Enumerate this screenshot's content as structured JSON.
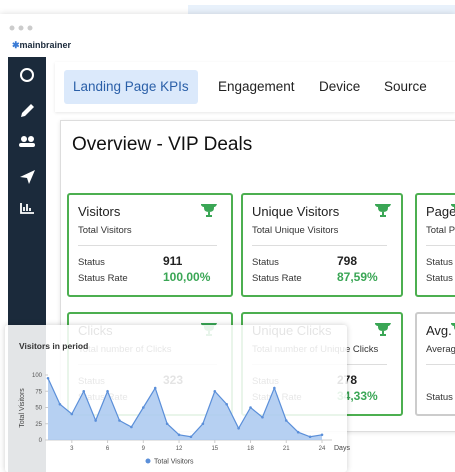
{
  "window": {
    "logo": "mainbrainer"
  },
  "tabs": [
    "Landing Page KPIs",
    "Engagement",
    "Device",
    "Source"
  ],
  "panel": {
    "title": "Overview - VIP Deals"
  },
  "cards": [
    {
      "title": "Visitors",
      "subtitle": "Total Visitors",
      "status_label": "Status",
      "status": "911",
      "rate_label": "Status Rate",
      "rate": "100,00%"
    },
    {
      "title": "Unique Visitors",
      "subtitle": "Total Unique Visitors",
      "status_label": "Status",
      "status": "798",
      "rate_label": "Status Rate",
      "rate": "87,59%"
    },
    {
      "title": "Page",
      "subtitle": "Total P",
      "status_label": "Status",
      "rate_label": "Status"
    },
    {
      "title": "Clicks",
      "subtitle": "Total number of Clicks",
      "status_label": "Status",
      "status": "323",
      "rate_label": "Status Rate"
    },
    {
      "title": "Unique Clicks",
      "subtitle": "Total number of Unique Clicks",
      "status_label": "Status",
      "status": "278",
      "rate_label": "Status Rate",
      "rate": "34,33%"
    },
    {
      "title": "Avg. T",
      "subtitle": "Averag",
      "rate_label": "Status"
    }
  ],
  "chart_data": {
    "type": "area",
    "title": "Visitors in period",
    "y_label": "Total Visitors",
    "x_label": "Days",
    "x": [
      1,
      2,
      3,
      4,
      5,
      6,
      7,
      8,
      9,
      10,
      11,
      12,
      13,
      14,
      15,
      16,
      17,
      18,
      19,
      20,
      21,
      22,
      23,
      24
    ],
    "series": [
      {
        "name": "Total Visitors",
        "color": "#5b8fd9",
        "values": [
          95,
          55,
          40,
          75,
          30,
          75,
          30,
          20,
          50,
          80,
          25,
          8,
          5,
          25,
          75,
          55,
          18,
          50,
          35,
          80,
          30,
          12,
          5,
          8
        ]
      }
    ],
    "xlim": [
      1,
      24
    ],
    "xticks": [
      3,
      6,
      9,
      12,
      15,
      18,
      21,
      24
    ],
    "ylim": [
      0,
      100
    ],
    "yticks": [
      0,
      25,
      50,
      75,
      100
    ]
  }
}
